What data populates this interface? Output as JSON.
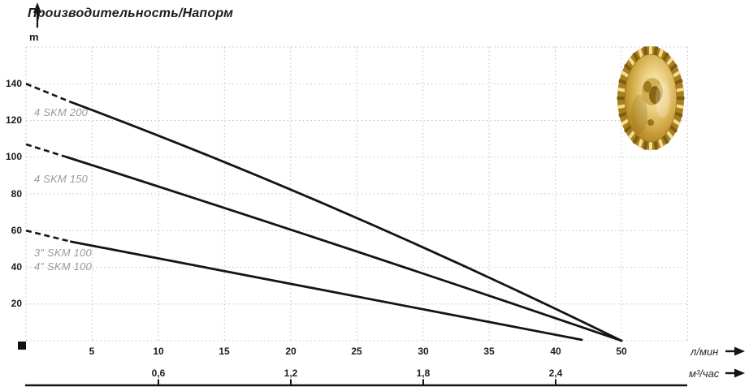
{
  "header": {
    "title": "Производительность/Напорм",
    "y_unit": "m"
  },
  "axes": {
    "y_ticks": [
      "140",
      "120",
      "100",
      "80",
      "60",
      "40",
      "20"
    ],
    "x_ticks_lpm": [
      "5",
      "10",
      "15",
      "20",
      "25",
      "30",
      "35",
      "40",
      "50"
    ],
    "x_ticks_m3h": [
      "0,6",
      "1,2",
      "1,8",
      "2,4"
    ],
    "x_unit_lpm": "л/мин",
    "x_unit_m3h": "м³/час"
  },
  "curve_labels": {
    "skm200": "4 SKM 200",
    "skm150": "4 SKM 150",
    "skm100_3": "3″ SKM 100",
    "skm100_4": "4″ SKM 100"
  },
  "colors": {
    "line": "#141414",
    "grid": "#c6c6c6",
    "curve_label": "#9b9b9b",
    "text": "#1a1a1a",
    "impeller_gold": "#c89a2e"
  },
  "chart_data": {
    "type": "line",
    "title": "Производительность/Напорм",
    "ylabel": "m",
    "xlabel_primary": "л/мин",
    "xlabel_secondary": "м³/час",
    "x_ticks_lpm": [
      5,
      10,
      15,
      20,
      25,
      30,
      35,
      40,
      50
    ],
    "x_ticks_m3h": [
      0.6,
      1.2,
      1.8,
      2.4
    ],
    "ylim": [
      0,
      160
    ],
    "grid": true,
    "legend_position": "labels-inline-left-of-curves",
    "series": [
      {
        "name": "4 SKM 200",
        "start_dashed_until_lpm": 3.4,
        "points_lpm_m": [
          [
            0,
            140
          ],
          [
            3.4,
            130
          ],
          [
            24,
            70
          ],
          [
            50,
            0
          ]
        ]
      },
      {
        "name": "4 SKM 150",
        "start_dashed_until_lpm": 3.1,
        "points_lpm_m": [
          [
            0,
            107
          ],
          [
            3.1,
            100
          ],
          [
            24,
            51
          ],
          [
            50,
            0
          ]
        ]
      },
      {
        "name": "3″/4″ SKM 100",
        "start_dashed_until_lpm": 3.4,
        "points_lpm_m": [
          [
            0,
            60
          ],
          [
            3.4,
            54
          ],
          [
            23,
            27
          ],
          [
            44,
            0.5
          ]
        ]
      }
    ]
  }
}
